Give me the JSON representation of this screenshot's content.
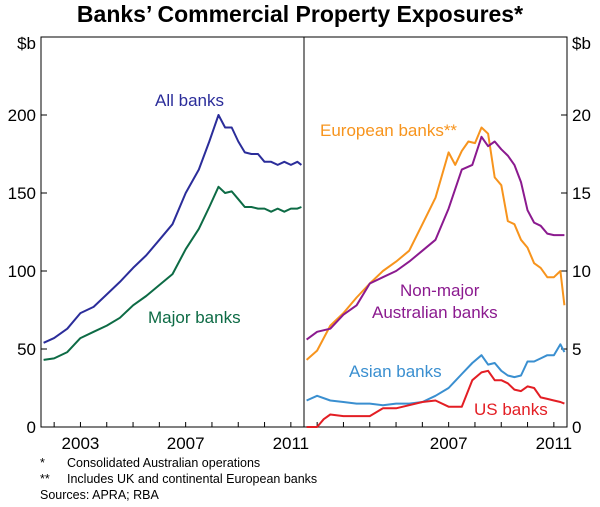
{
  "title": "Banks’ Commercial Property Exposures*",
  "colors": {
    "all_banks": "#2b2d9a",
    "major_banks": "#0d6b45",
    "european_banks": "#f7941d",
    "non_major": "#8b1a8f",
    "asian_banks": "#3a8fd0",
    "us_banks": "#e31e24"
  },
  "footnotes": [
    {
      "mark": "*",
      "text": "Consolidated Australian operations"
    },
    {
      "mark": "**",
      "text": "Includes UK and continental European banks"
    }
  ],
  "sources": "Sources: APRA; RBA",
  "chart_data": [
    {
      "type": "line",
      "panel": "left",
      "unit_label": "$b",
      "ylim": [
        0,
        250
      ],
      "yticks": [
        0,
        50,
        100,
        150,
        200
      ],
      "xlim": [
        2001.5,
        2011.5
      ],
      "xticks": [
        2003,
        2007,
        2011
      ],
      "grid": false,
      "series": [
        {
          "name": "All banks",
          "color_key": "all_banks",
          "x": [
            2001.6,
            2002.0,
            2002.5,
            2003.0,
            2003.5,
            2004.0,
            2004.5,
            2005.0,
            2005.5,
            2006.0,
            2006.5,
            2007.0,
            2007.5,
            2007.9,
            2008.25,
            2008.5,
            2008.75,
            2009.0,
            2009.25,
            2009.5,
            2009.75,
            2010.0,
            2010.25,
            2010.5,
            2010.75,
            2011.0,
            2011.25,
            2011.4
          ],
          "values": [
            54,
            57,
            63,
            73,
            77,
            85,
            93,
            102,
            110,
            120,
            130,
            150,
            165,
            183,
            200,
            192,
            192,
            183,
            176,
            175,
            175,
            170,
            170,
            168,
            170,
            168,
            170,
            168
          ]
        },
        {
          "name": "Major banks",
          "color_key": "major_banks",
          "x": [
            2001.6,
            2002.0,
            2002.5,
            2003.0,
            2003.5,
            2004.0,
            2004.5,
            2005.0,
            2005.5,
            2006.0,
            2006.5,
            2007.0,
            2007.5,
            2007.9,
            2008.25,
            2008.5,
            2008.75,
            2009.0,
            2009.25,
            2009.5,
            2009.75,
            2010.0,
            2010.25,
            2010.5,
            2010.75,
            2011.0,
            2011.25,
            2011.4
          ],
          "values": [
            43,
            44,
            48,
            57,
            61,
            65,
            70,
            78,
            84,
            91,
            98,
            114,
            127,
            141,
            154,
            150,
            151,
            146,
            141,
            141,
            140,
            140,
            138,
            140,
            138,
            140,
            140,
            141
          ]
        }
      ]
    },
    {
      "type": "line",
      "panel": "right",
      "unit_label": "$b",
      "ylim": [
        0,
        25
      ],
      "yticks": [
        0,
        5,
        10,
        15,
        20
      ],
      "xlim": [
        2001.5,
        2011.5
      ],
      "xticks": [
        2007,
        2011
      ],
      "grid": false,
      "series": [
        {
          "name": "European banks**",
          "color_key": "european_banks",
          "x": [
            2001.6,
            2002.0,
            2002.5,
            2003.0,
            2003.5,
            2004.0,
            2004.5,
            2005.0,
            2005.5,
            2006.0,
            2006.5,
            2007.0,
            2007.25,
            2007.5,
            2007.75,
            2008.0,
            2008.25,
            2008.5,
            2008.75,
            2009.0,
            2009.25,
            2009.5,
            2009.75,
            2010.0,
            2010.25,
            2010.5,
            2010.75,
            2011.0,
            2011.25,
            2011.4
          ],
          "values": [
            4.3,
            4.9,
            6.5,
            7.3,
            8.3,
            9.2,
            10.0,
            10.6,
            11.3,
            13.0,
            14.7,
            17.6,
            16.8,
            17.7,
            18.3,
            18.2,
            19.2,
            18.8,
            16.0,
            15.5,
            13.2,
            13.0,
            12.0,
            11.5,
            10.5,
            10.2,
            9.6,
            9.6,
            10.0,
            7.8
          ]
        },
        {
          "name": "Non-major Australian banks",
          "color_key": "non_major",
          "x": [
            2001.6,
            2002.0,
            2002.5,
            2003.0,
            2003.5,
            2004.0,
            2004.5,
            2005.0,
            2005.5,
            2006.0,
            2006.5,
            2007.0,
            2007.5,
            2007.9,
            2008.25,
            2008.5,
            2008.75,
            2009.0,
            2009.25,
            2009.5,
            2009.75,
            2010.0,
            2010.25,
            2010.5,
            2010.75,
            2011.0,
            2011.25,
            2011.4
          ],
          "values": [
            5.6,
            6.1,
            6.3,
            7.2,
            7.8,
            9.2,
            9.6,
            10.0,
            10.6,
            11.3,
            12.0,
            14.0,
            16.5,
            16.8,
            18.6,
            18.0,
            18.3,
            17.8,
            17.4,
            16.8,
            15.7,
            13.9,
            13.1,
            12.9,
            12.4,
            12.3,
            12.3,
            12.3
          ]
        },
        {
          "name": "Asian banks",
          "color_key": "asian_banks",
          "x": [
            2001.6,
            2002.0,
            2002.5,
            2003.0,
            2003.5,
            2004.0,
            2004.5,
            2005.0,
            2005.5,
            2006.0,
            2006.5,
            2007.0,
            2007.5,
            2007.9,
            2008.25,
            2008.5,
            2008.75,
            2009.0,
            2009.25,
            2009.5,
            2009.75,
            2010.0,
            2010.25,
            2010.5,
            2010.75,
            2011.0,
            2011.25,
            2011.4
          ],
          "values": [
            1.7,
            2.0,
            1.7,
            1.6,
            1.5,
            1.5,
            1.4,
            1.5,
            1.5,
            1.6,
            2.0,
            2.5,
            3.4,
            4.1,
            4.6,
            4.0,
            4.1,
            3.6,
            3.3,
            3.2,
            3.3,
            4.2,
            4.2,
            4.4,
            4.6,
            4.6,
            5.3,
            4.8
          ]
        },
        {
          "name": "US banks",
          "color_key": "us_banks",
          "x": [
            2001.6,
            2002.0,
            2002.25,
            2002.5,
            2003.0,
            2003.5,
            2004.0,
            2004.5,
            2005.0,
            2005.5,
            2006.0,
            2006.5,
            2007.0,
            2007.5,
            2007.9,
            2008.25,
            2008.5,
            2008.75,
            2009.0,
            2009.25,
            2009.5,
            2009.75,
            2010.0,
            2010.25,
            2010.5,
            2010.75,
            2011.0,
            2011.25,
            2011.4
          ],
          "values": [
            0.0,
            0.0,
            0.5,
            0.8,
            0.7,
            0.7,
            0.7,
            1.2,
            1.2,
            1.4,
            1.6,
            1.7,
            1.3,
            1.3,
            3.0,
            3.5,
            3.6,
            3.0,
            3.0,
            2.8,
            2.4,
            2.3,
            2.6,
            2.5,
            1.9,
            1.8,
            1.7,
            1.6,
            1.5
          ]
        }
      ]
    }
  ],
  "series_labels": [
    {
      "text": "All banks",
      "color_key": "all_banks"
    },
    {
      "text": "Major banks",
      "color_key": "major_banks"
    },
    {
      "text": "European banks**",
      "color_key": "european_banks"
    },
    {
      "text": "Non-major",
      "color_key": "non_major"
    },
    {
      "text": "Australian banks",
      "color_key": "non_major"
    },
    {
      "text": "Asian banks",
      "color_key": "asian_banks"
    },
    {
      "text": "US banks",
      "color_key": "us_banks"
    }
  ]
}
